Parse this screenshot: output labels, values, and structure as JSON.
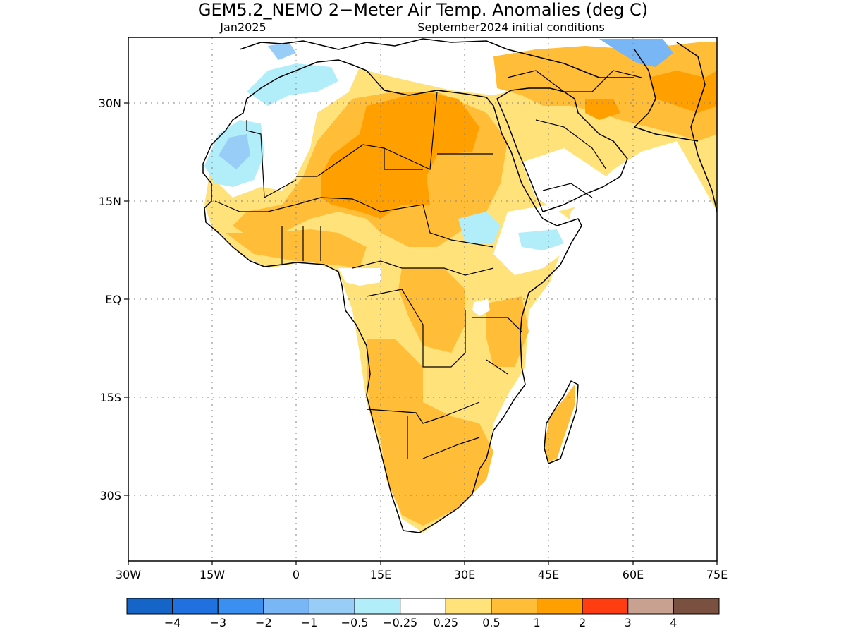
{
  "title": "GEM5.2_NEMO 2−Meter Air Temp. Anomalies (deg C)",
  "subtitle_left": "Jan2025",
  "subtitle_right": "September2024 initial conditions",
  "map": {
    "lon_range": [
      -30,
      75
    ],
    "lat_range": [
      -47,
      46
    ],
    "x_ticks": [
      "30W",
      "15W",
      "0",
      "15E",
      "30E",
      "45E",
      "60E",
      "75E"
    ],
    "y_ticks": [
      "30N",
      "15N",
      "EQ",
      "15S",
      "30S"
    ],
    "gridlines": "dotted"
  },
  "colorbar": {
    "colors": [
      "#1565c8",
      "#2070e0",
      "#3b8ff0",
      "#78b6f6",
      "#98cdf8",
      "#b2eefa",
      "#ffffff",
      "#ffe27a",
      "#ffbd38",
      "#ffa000",
      "#ff3d10",
      "#c9a191",
      "#7a5040"
    ],
    "labels": [
      "−4",
      "−3",
      "−2",
      "−1",
      "−0.5",
      "−0.25",
      "0.25",
      "0.5",
      "1",
      "2",
      "3",
      "4"
    ]
  }
}
